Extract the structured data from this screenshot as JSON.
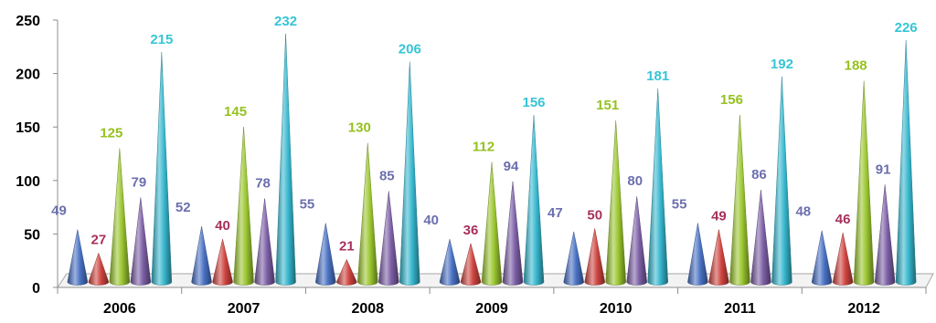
{
  "chart_data": {
    "type": "bar",
    "shape": "cone",
    "title": "",
    "xlabel": "",
    "ylabel": "",
    "categories": [
      "2006",
      "2007",
      "2008",
      "2009",
      "2010",
      "2011",
      "2012"
    ],
    "ylim": [
      0,
      250
    ],
    "yticks": [
      "0",
      "50",
      "100",
      "150",
      "200",
      "250"
    ],
    "grid": false,
    "legend": "none",
    "series": [
      {
        "values": [
          49,
          52,
          55,
          40,
          47,
          55,
          48
        ],
        "color": "#4a72c4",
        "label_color": "#6b6fae"
      },
      {
        "values": [
          27,
          40,
          21,
          36,
          50,
          49,
          46
        ],
        "color": "#cf4540",
        "label_color": "#a8305c"
      },
      {
        "values": [
          125,
          145,
          130,
          112,
          151,
          156,
          188
        ],
        "color": "#9bc630",
        "label_color": "#95c11f"
      },
      {
        "values": [
          79,
          78,
          85,
          94,
          80,
          86,
          91
        ],
        "color": "#7c5fa6",
        "label_color": "#6b6fae"
      },
      {
        "values": [
          215,
          232,
          206,
          156,
          181,
          192,
          226
        ],
        "color": "#38b8cf",
        "label_color": "#36c5d6"
      }
    ]
  }
}
